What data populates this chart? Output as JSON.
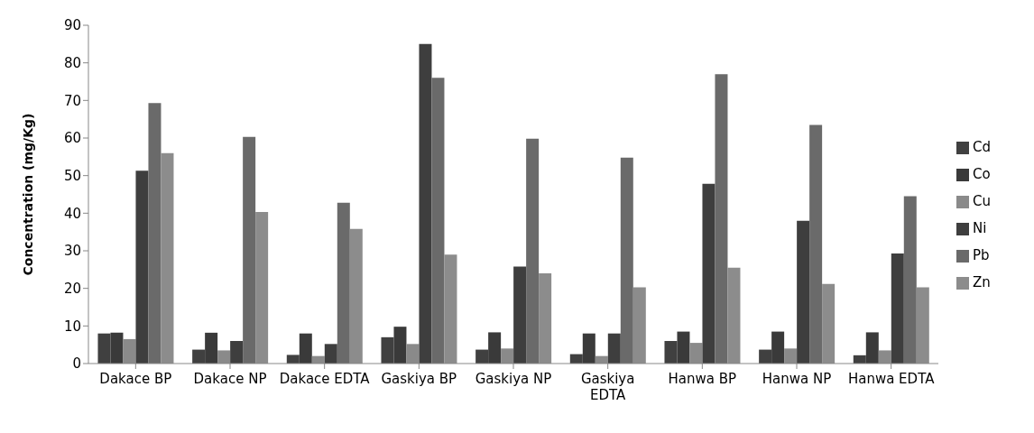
{
  "chart_data": {
    "type": "bar",
    "ylabel": "Concentration (mg/Kg)",
    "categories": [
      "Dakace BP",
      "Dakace NP",
      "Dakace EDTA",
      "Gaskiya BP",
      "Gaskiya NP",
      "Gaskiya EDTA",
      "Hanwa BP",
      "Hanwa NP",
      "Hanwa EDTA"
    ],
    "series": [
      {
        "name": "Cd",
        "color": "#404040",
        "values": [
          8,
          3.7,
          2.3,
          7,
          3.7,
          2.5,
          6,
          3.7,
          2.2
        ]
      },
      {
        "name": "Co",
        "color": "#3a3a3a",
        "values": [
          8.2,
          8.2,
          8,
          9.8,
          8.3,
          8,
          8.5,
          8.5,
          8.3
        ]
      },
      {
        "name": "Cu",
        "color": "#8a8a8a",
        "values": [
          6.5,
          3.5,
          2,
          5.2,
          4,
          2,
          5.5,
          4,
          3.5
        ]
      },
      {
        "name": "Ni",
        "color": "#3e3e3e",
        "values": [
          51.3,
          6,
          5.2,
          85,
          25.8,
          8,
          47.8,
          38,
          29.3
        ]
      },
      {
        "name": "Pb",
        "color": "#6a6a6a",
        "values": [
          69.3,
          60.3,
          42.8,
          76,
          59.8,
          54.8,
          77,
          63.5,
          44.5
        ]
      },
      {
        "name": "Zn",
        "color": "#8c8c8c",
        "values": [
          56,
          40.3,
          35.8,
          29,
          24,
          20.3,
          25.5,
          21.2,
          20.3
        ]
      }
    ],
    "ylim": [
      0,
      90
    ],
    "yticks": [
      0,
      10,
      20,
      30,
      40,
      50,
      60,
      70,
      80,
      90
    ],
    "grid": false,
    "legend": "right"
  }
}
